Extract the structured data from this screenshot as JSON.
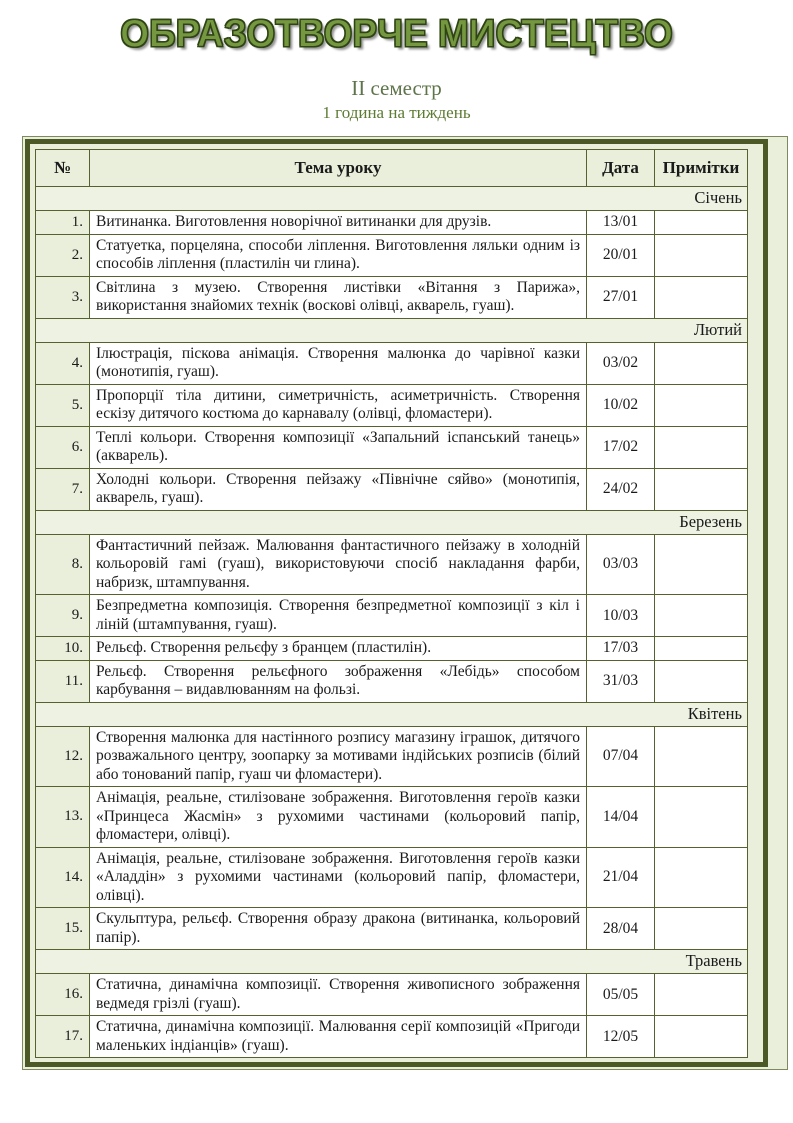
{
  "header": {
    "title": "ОБРАЗОТВОРЧЕ МИСТЕЦТВО",
    "semester": "ІІ семестр",
    "hours_per_week": "1 година на тиждень"
  },
  "colors": {
    "title_fill": "#75973f",
    "title_outline": "#2e4414",
    "subtitle_green": "#5c7b33",
    "border_dark_olive": "#4c5826",
    "grid_line": "#566130",
    "cell_light_green": "#e9efdb",
    "month_row_green": "#edf2e3"
  },
  "table": {
    "headers": [
      "№",
      "Тема уроку",
      "Дата",
      "Примітки"
    ],
    "sections": [
      {
        "month": "Січень",
        "rows": [
          {
            "num": "1.",
            "topic": "Витинанка. Виготовлення новорічної витинанки для друзів.",
            "date": "13/01",
            "note": ""
          },
          {
            "num": "2.",
            "topic": "Статуетка, порцеляна, способи ліплення. Виготовлення ляльки одним із способів ліплення (пластилін чи глина).",
            "date": "20/01",
            "note": ""
          },
          {
            "num": "3.",
            "topic": "Світлина з музею. Створення листівки «Вітання з Парижа», використання знайомих технік (воскові олівці, акварель, гуаш).",
            "date": "27/01",
            "note": ""
          }
        ]
      },
      {
        "month": "Лютий",
        "rows": [
          {
            "num": "4.",
            "topic": "Ілюстрація, піскова анімація. Створення малюнка до чарівної казки (монотипія, гуаш).",
            "date": "03/02",
            "note": ""
          },
          {
            "num": "5.",
            "topic": "Пропорції тіла дитини, симетричність, асиметричність. Створення ескізу дитячого костюма до карнавалу (олівці, фломастери).",
            "date": "10/02",
            "note": ""
          },
          {
            "num": "6.",
            "topic": "Теплі кольори. Створення композиції «Запальний іспанський танець» (акварель).",
            "date": "17/02",
            "note": ""
          },
          {
            "num": "7.",
            "topic": "Холодні кольори. Створення пейзажу «Північне сяйво» (монотипія, акварель, гуаш).",
            "date": "24/02",
            "note": ""
          }
        ]
      },
      {
        "month": "Березень",
        "rows": [
          {
            "num": "8.",
            "topic": "Фантастичний пейзаж. Малювання фантастичного пейзажу в холодній кольоровій гамі (гуаш), використовуючи спосіб накладання фарби, набризк, штампування.",
            "date": "03/03",
            "note": ""
          },
          {
            "num": "9.",
            "topic": "Безпредметна композиція. Створення безпредметної композиції з кіл і ліній (штампування, гуаш).",
            "date": "10/03",
            "note": ""
          },
          {
            "num": "10.",
            "topic": "Рельєф. Створення рельєфу з бранцем (пластилін).",
            "date": "17/03",
            "note": ""
          },
          {
            "num": "11.",
            "topic": "Рельєф. Створення рельєфного зображення «Лебідь» способом карбування – видавлюванням на фользі.",
            "date": "31/03",
            "note": ""
          }
        ]
      },
      {
        "month": "Квітень",
        "rows": [
          {
            "num": "12.",
            "topic": "Створення малюнка для настінного розпису магазину іграшок, дитячого розважального центру, зоопарку за мотивами індійських розписів (білий або тонований папір, гуаш чи фломастери).",
            "date": "07/04",
            "note": ""
          },
          {
            "num": "13.",
            "topic": "Анімація, реальне, стилізоване зображення. Виготовлення героїв казки «Принцеса Жасмін» з рухомими частинами (кольоровий папір, фломастери, олівці).",
            "date": "14/04",
            "note": ""
          },
          {
            "num": "14.",
            "topic": "Анімація, реальне, стилізоване зображення. Виготовлення героїв казки «Аладдін» з рухомими частинами (кольоровий папір, фломастери, олівці).",
            "date": "21/04",
            "note": ""
          },
          {
            "num": "15.",
            "topic": "Скульптура, рельєф. Створення образу дракона (витинанка, кольоровий папір).",
            "date": "28/04",
            "note": ""
          }
        ]
      },
      {
        "month": "Травень",
        "rows": [
          {
            "num": "16.",
            "topic": "Статична, динамічна композиції. Створення живописного зображення ведмедя грізлі (гуаш).",
            "date": "05/05",
            "note": ""
          },
          {
            "num": "17.",
            "topic": "Статична, динамічна композиції. Малювання серії композицій «Пригоди маленьких індіанців» (гуаш).",
            "date": "12/05",
            "note": ""
          }
        ]
      }
    ]
  }
}
